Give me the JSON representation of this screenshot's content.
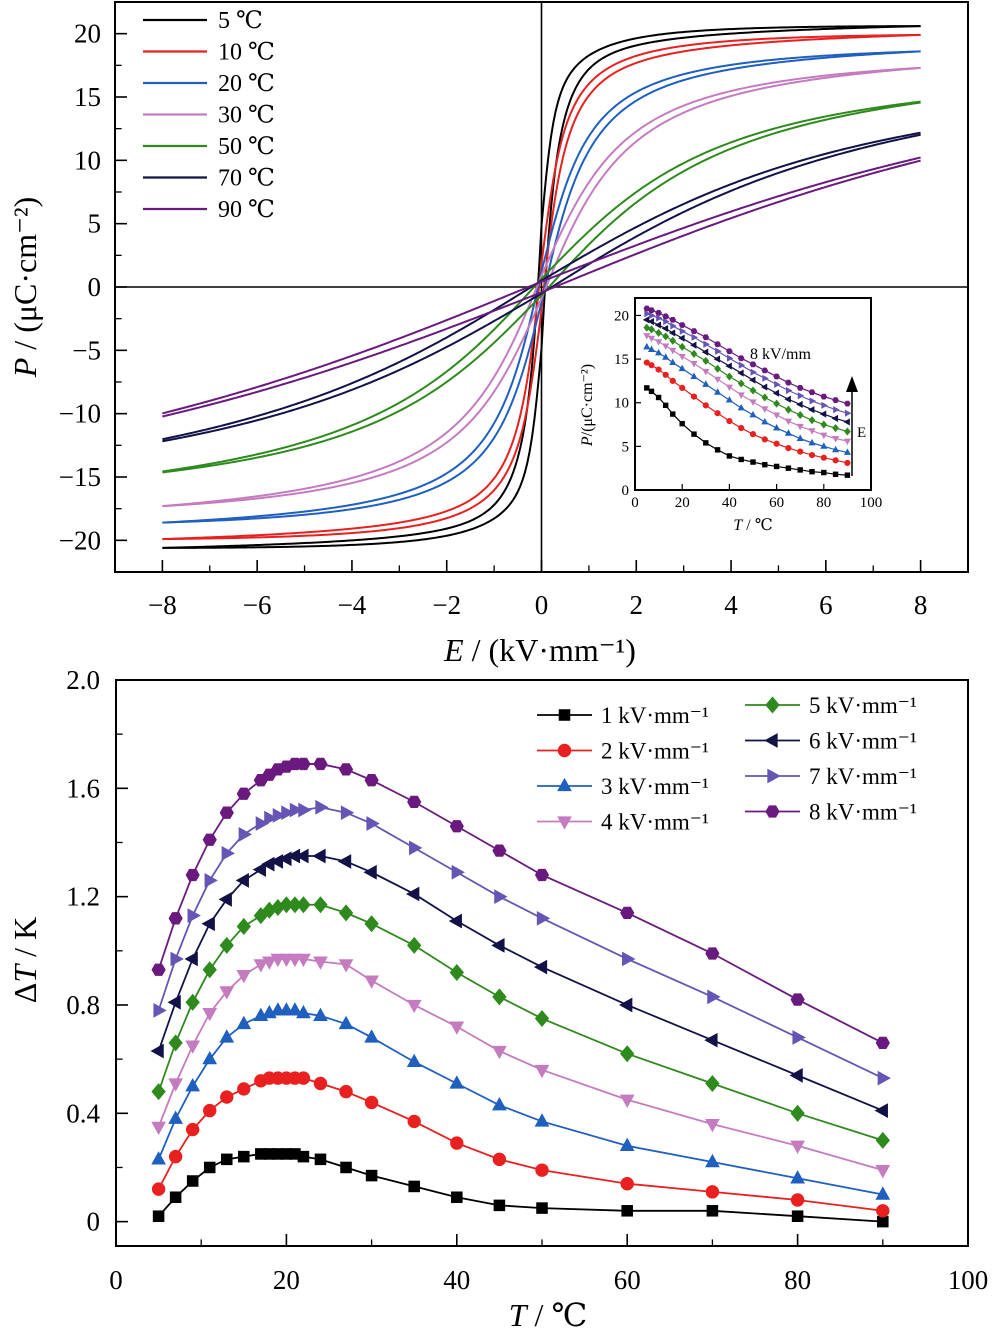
{
  "figure": {
    "panels": 2
  },
  "chart_data": [
    {
      "type": "line",
      "panel": "top",
      "description_kind": "hysteresis loops",
      "xlabel_italic": "E",
      "xlabel_unit": " / (kV·mm⁻¹)",
      "ylabel_italic": "P",
      "ylabel_unit": " / (μC·cm⁻²)",
      "xlim": [
        -9,
        9
      ],
      "ylim": [
        -22.5,
        22.5
      ],
      "xticks": [
        -8,
        -6,
        -4,
        -2,
        0,
        2,
        4,
        6,
        8
      ],
      "xtick_labels": [
        "−8",
        "−6",
        "−4",
        "−2",
        "0",
        "2",
        "4",
        "6",
        "8"
      ],
      "yticks": [
        -20,
        -15,
        -10,
        -5,
        0,
        5,
        10,
        15,
        20
      ],
      "ytick_labels": [
        "−20",
        "−15",
        "−10",
        "−5",
        "0",
        "5",
        "10",
        "15",
        "20"
      ],
      "zero_lines": true,
      "legend_position": "top-left",
      "series": [
        {
          "name": "5 ℃",
          "color": "#000000",
          "Pmax": 20.6,
          "Pr": 4.5,
          "knee": 0.25
        },
        {
          "name": "10 ℃",
          "color": "#e8201f",
          "Pmax": 19.9,
          "Pr": 1.5,
          "knee": 0.4
        },
        {
          "name": "20 ℃",
          "color": "#1f5fbf",
          "Pmax": 18.6,
          "Pr": 0.9,
          "knee": 0.8
        },
        {
          "name": "30 ℃",
          "color": "#c57bc0",
          "Pmax": 17.3,
          "Pr": 0.6,
          "knee": 1.4
        },
        {
          "name": "50 ℃",
          "color": "#2e8a1d",
          "Pmax": 14.6,
          "Pr": 0.4,
          "knee": 3.0
        },
        {
          "name": "70 ℃",
          "color": "#121248",
          "Pmax": 12.1,
          "Pr": 0.3,
          "knee": 5.5
        },
        {
          "name": "90 ℃",
          "color": "#6a1a7e",
          "Pmax": 10.1,
          "Pr": 0.25,
          "knee": 10.0
        }
      ]
    },
    {
      "type": "scatter",
      "panel": "top-inset",
      "xlabel_italic": "T",
      "xlabel_unit": " / ℃",
      "ylabel_italic": "P",
      "ylabel_unit": "/(μC·cm⁻²)",
      "xlim": [
        0,
        100
      ],
      "ylim": [
        0,
        22
      ],
      "xticks": [
        0,
        20,
        40,
        60,
        80,
        100
      ],
      "yticks": [
        0,
        5,
        10,
        15,
        20
      ],
      "annotation": "8 kV/mm",
      "arrow_label": "E",
      "x": [
        5,
        7,
        10,
        13,
        16,
        20,
        25,
        30,
        35,
        40,
        45,
        50,
        55,
        60,
        65,
        70,
        75,
        80,
        85,
        90
      ],
      "series": [
        {
          "field": 1,
          "color": "#000000",
          "marker": "square",
          "values": [
            11.7,
            11.3,
            10.6,
            9.7,
            8.7,
            7.6,
            6.4,
            5.4,
            4.6,
            3.9,
            3.5,
            3.2,
            2.9,
            2.7,
            2.5,
            2.3,
            2.1,
            2.0,
            1.8,
            1.7
          ]
        },
        {
          "field": 2,
          "color": "#e8201f",
          "marker": "circle",
          "values": [
            14.6,
            14.3,
            13.8,
            13.2,
            12.5,
            11.7,
            10.7,
            9.7,
            8.8,
            7.9,
            7.1,
            6.4,
            5.8,
            5.3,
            4.8,
            4.4,
            4.0,
            3.7,
            3.4,
            3.1
          ]
        },
        {
          "field": 3,
          "color": "#1f5fbf",
          "marker": "triangle-up",
          "values": [
            16.4,
            16.1,
            15.7,
            15.2,
            14.6,
            13.9,
            13.0,
            12.1,
            11.2,
            10.3,
            9.4,
            8.6,
            7.8,
            7.1,
            6.5,
            5.9,
            5.4,
            5.0,
            4.6,
            4.3
          ]
        },
        {
          "field": 4,
          "color": "#c57bc0",
          "marker": "triangle-down",
          "values": [
            17.7,
            17.4,
            17.0,
            16.5,
            16.0,
            15.3,
            14.5,
            13.6,
            12.7,
            11.8,
            10.9,
            10.1,
            9.3,
            8.6,
            7.9,
            7.3,
            6.8,
            6.3,
            5.9,
            5.6
          ]
        },
        {
          "field": 5,
          "color": "#2e8a1d",
          "marker": "diamond",
          "values": [
            18.6,
            18.4,
            18.0,
            17.6,
            17.1,
            16.4,
            15.6,
            14.8,
            13.9,
            13.0,
            12.2,
            11.4,
            10.6,
            9.9,
            9.2,
            8.6,
            8.0,
            7.5,
            7.1,
            6.7
          ]
        },
        {
          "field": 6,
          "color": "#121248",
          "marker": "triangle-left",
          "values": [
            19.5,
            19.3,
            18.9,
            18.5,
            18.0,
            17.4,
            16.6,
            15.8,
            15.0,
            14.2,
            13.4,
            12.6,
            11.8,
            11.1,
            10.4,
            9.8,
            9.2,
            8.7,
            8.2,
            7.8
          ]
        },
        {
          "field": 7,
          "color": "#6655b5",
          "marker": "triangle-right",
          "values": [
            20.2,
            20.0,
            19.7,
            19.3,
            18.8,
            18.2,
            17.5,
            16.7,
            15.9,
            15.1,
            14.3,
            13.5,
            12.8,
            12.1,
            11.4,
            10.8,
            10.2,
            9.7,
            9.2,
            8.8
          ]
        },
        {
          "field": 8,
          "color": "#6a1a7e",
          "marker": "hexagon",
          "values": [
            20.8,
            20.6,
            20.3,
            19.9,
            19.5,
            18.9,
            18.2,
            17.5,
            16.7,
            15.9,
            15.1,
            14.4,
            13.7,
            13.0,
            12.3,
            11.7,
            11.2,
            10.7,
            10.3,
            9.9
          ]
        }
      ]
    },
    {
      "type": "line",
      "panel": "bottom",
      "xlabel_italic": "T",
      "xlabel_unit": " / ℃",
      "ylabel_prefix": "Δ",
      "ylabel_italic": "T",
      "ylabel_unit": " / K",
      "xlim": [
        0,
        100
      ],
      "ylim": [
        -0.09,
        2.0
      ],
      "xticks": [
        0,
        20,
        40,
        60,
        80,
        100
      ],
      "xtick_labels": [
        "0",
        "20",
        "40",
        "60",
        "80",
        "100"
      ],
      "yticks": [
        0,
        0.4,
        0.8,
        1.2,
        1.6,
        2.0
      ],
      "ytick_labels": [
        "0",
        "0.4",
        "0.8",
        "1.2",
        "1.6",
        "2.0"
      ],
      "legend_position": "top-right",
      "x": [
        5,
        7,
        9,
        11,
        13,
        15,
        17,
        18,
        19,
        20,
        21,
        22,
        24,
        27,
        30,
        35,
        40,
        45,
        50,
        60,
        70,
        80,
        90
      ],
      "series": [
        {
          "name": "1 kV·mm⁻¹",
          "color": "#000000",
          "marker": "square",
          "values": [
            0.02,
            0.09,
            0.15,
            0.2,
            0.23,
            0.24,
            0.25,
            0.25,
            0.25,
            0.25,
            0.25,
            0.24,
            0.23,
            0.2,
            0.17,
            0.13,
            0.09,
            0.06,
            0.05,
            0.04,
            0.04,
            0.02,
            0.0
          ]
        },
        {
          "name": "2 kV·mm⁻¹",
          "color": "#e8201f",
          "marker": "circle",
          "values": [
            0.12,
            0.24,
            0.34,
            0.41,
            0.46,
            0.49,
            0.52,
            0.53,
            0.53,
            0.53,
            0.53,
            0.53,
            0.51,
            0.48,
            0.44,
            0.37,
            0.29,
            0.23,
            0.19,
            0.14,
            0.11,
            0.08,
            0.04
          ]
        },
        {
          "name": "3 kV·mm⁻¹",
          "color": "#1f5fbf",
          "marker": "triangle-up",
          "values": [
            0.23,
            0.38,
            0.5,
            0.6,
            0.68,
            0.73,
            0.76,
            0.77,
            0.78,
            0.78,
            0.78,
            0.77,
            0.76,
            0.73,
            0.68,
            0.59,
            0.51,
            0.43,
            0.37,
            0.28,
            0.22,
            0.16,
            0.1
          ]
        },
        {
          "name": "4 kV·mm⁻¹",
          "color": "#c57bc0",
          "marker": "triangle-down",
          "values": [
            0.35,
            0.51,
            0.65,
            0.77,
            0.85,
            0.91,
            0.95,
            0.96,
            0.97,
            0.97,
            0.97,
            0.97,
            0.96,
            0.95,
            0.89,
            0.8,
            0.72,
            0.63,
            0.56,
            0.45,
            0.36,
            0.28,
            0.19
          ]
        },
        {
          "name": "5 kV·mm⁻¹",
          "color": "#2e8a1d",
          "marker": "diamond",
          "values": [
            0.48,
            0.66,
            0.81,
            0.93,
            1.02,
            1.09,
            1.13,
            1.15,
            1.16,
            1.17,
            1.17,
            1.17,
            1.17,
            1.14,
            1.1,
            1.02,
            0.92,
            0.83,
            0.75,
            0.62,
            0.51,
            0.4,
            0.3
          ]
        },
        {
          "name": "6 kV·mm⁻¹",
          "color": "#121248",
          "marker": "triangle-left",
          "values": [
            0.63,
            0.81,
            0.97,
            1.1,
            1.19,
            1.26,
            1.3,
            1.32,
            1.33,
            1.34,
            1.35,
            1.35,
            1.35,
            1.33,
            1.29,
            1.21,
            1.11,
            1.02,
            0.94,
            0.8,
            0.67,
            0.54,
            0.41
          ]
        },
        {
          "name": "7 kV·mm⁻¹",
          "color": "#6655b5",
          "marker": "triangle-right",
          "values": [
            0.78,
            0.97,
            1.13,
            1.26,
            1.36,
            1.43,
            1.47,
            1.49,
            1.5,
            1.51,
            1.52,
            1.52,
            1.53,
            1.51,
            1.47,
            1.38,
            1.29,
            1.2,
            1.12,
            0.97,
            0.83,
            0.68,
            0.53
          ]
        },
        {
          "name": "8 kV·mm⁻¹",
          "color": "#6a1a7e",
          "marker": "hexagon",
          "values": [
            0.93,
            1.12,
            1.28,
            1.41,
            1.51,
            1.58,
            1.63,
            1.65,
            1.67,
            1.68,
            1.69,
            1.69,
            1.69,
            1.67,
            1.63,
            1.55,
            1.46,
            1.37,
            1.28,
            1.14,
            0.99,
            0.82,
            0.66
          ]
        }
      ]
    }
  ]
}
